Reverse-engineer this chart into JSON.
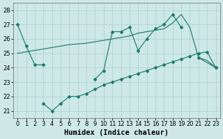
{
  "xlabel": "Humidex (Indice chaleur)",
  "xlim": [
    -0.5,
    23.5
  ],
  "ylim": [
    20.5,
    28.5
  ],
  "yticks": [
    21,
    22,
    23,
    24,
    25,
    26,
    27,
    28
  ],
  "xticks": [
    0,
    1,
    2,
    3,
    4,
    5,
    6,
    7,
    8,
    9,
    10,
    11,
    12,
    13,
    14,
    15,
    16,
    17,
    18,
    19,
    20,
    21,
    22,
    23
  ],
  "bg_color": "#cde8e7",
  "grid_color": "#aacfce",
  "line_color": "#1a7a70",
  "line1_segs": [
    {
      "x": [
        0,
        1,
        2,
        3
      ],
      "y": [
        27.0,
        25.5,
        24.2,
        24.2
      ]
    },
    {
      "x": [
        9,
        10,
        11,
        12,
        13,
        14,
        15,
        16,
        17,
        18,
        19
      ],
      "y": [
        23.2,
        23.8,
        26.5,
        26.5,
        26.8,
        25.2,
        26.0,
        26.7,
        27.0,
        27.7,
        26.8
      ]
    },
    {
      "x": [
        21,
        23
      ],
      "y": [
        24.7,
        24.0
      ]
    }
  ],
  "line2_segs": [
    {
      "x": [
        0,
        1,
        2,
        3,
        4,
        5,
        6,
        7,
        8,
        9,
        10,
        11,
        12,
        13,
        14,
        15,
        16,
        17,
        18,
        19,
        20
      ],
      "y": [
        25.0,
        25.1,
        25.2,
        25.3,
        25.4,
        25.5,
        25.6,
        25.65,
        25.7,
        25.8,
        25.9,
        26.0,
        26.1,
        26.2,
        26.4,
        26.5,
        26.6,
        26.7,
        27.1,
        27.7,
        26.8
      ]
    },
    {
      "x": [
        20,
        21,
        22,
        23
      ],
      "y": [
        26.8,
        24.7,
        24.5,
        24.0
      ]
    }
  ],
  "line3_segs": [
    {
      "x": [
        3,
        4,
        5,
        6,
        7,
        8,
        9,
        10,
        11,
        12,
        13,
        14,
        15,
        16,
        17,
        18,
        19,
        20,
        21,
        22,
        23
      ],
      "y": [
        21.5,
        21.0,
        21.5,
        22.0,
        22.0,
        22.2,
        22.5,
        22.8,
        23.0,
        23.2,
        23.4,
        23.6,
        23.8,
        24.0,
        24.2,
        24.4,
        24.6,
        24.8,
        25.0,
        25.1,
        24.0
      ]
    }
  ],
  "fontsize_xlabel": 7.5,
  "fontsize_ticks": 6.0
}
